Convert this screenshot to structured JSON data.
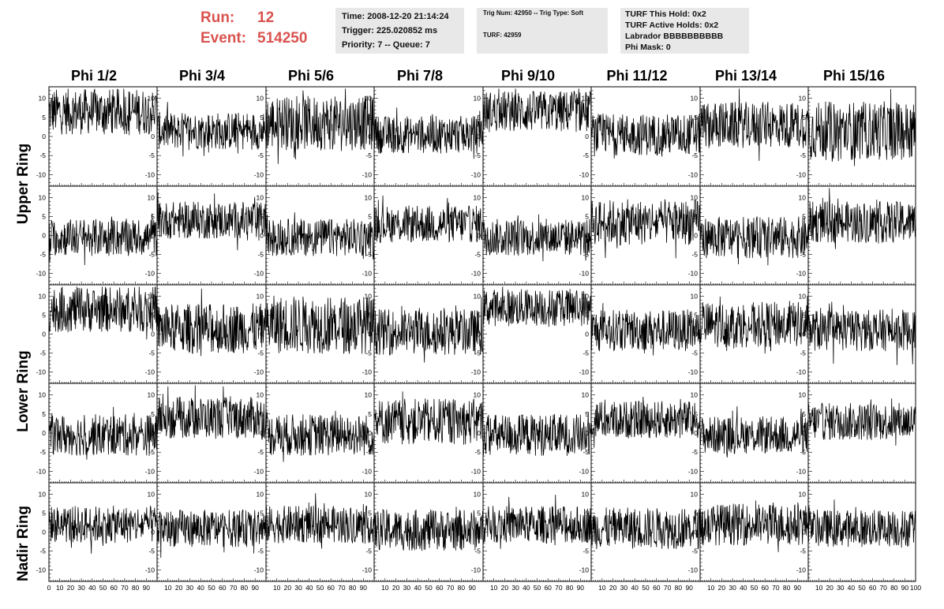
{
  "header": {
    "run_label": "Run:",
    "run_value": "12",
    "event_label": "Event:",
    "event_value": "514250"
  },
  "info_panel_1": {
    "time": "Time: 2008-12-20 21:14:24",
    "trigger": "Trigger: 225.020852 ms",
    "priority": "Priority: 7 -- Queue: 7"
  },
  "info_panel_2": {
    "trig": "Trig Num: 42950 -- Trig Type: Soft",
    "turf": "TURF: 42959"
  },
  "info_panel_3": {
    "this_hold": "TURF This Hold: 0x2",
    "active_holds": "TURF Active Holds: 0x2",
    "labrador": "Labrador BBBBBBBBBB",
    "phi_mask": "Phi Mask: 0"
  },
  "columns": [
    "Phi 1/2",
    "Phi 3/4",
    "Phi 5/6",
    "Phi 7/8",
    "Phi 9/10",
    "Phi 11/12",
    "Phi 13/14",
    "Phi 15/16"
  ],
  "rows": [
    "Upper Ring",
    "Upper Ring",
    "Lower Ring",
    "Lower Ring",
    "Nadir Ring"
  ],
  "chart_data": {
    "type": "line",
    "title": "",
    "xlim": [
      0,
      100
    ],
    "ylim": [
      -13,
      13
    ],
    "x_ticks": [
      0,
      10,
      20,
      30,
      40,
      50,
      60,
      70,
      80,
      90,
      100
    ],
    "y_ticks": [
      -10,
      -5,
      0,
      5,
      10
    ],
    "x_tick_labels_bottom": "0 10 20 30 40 50 60 70 80 90 100",
    "grid": false,
    "panels": [
      [
        {
          "baseline": 6.5,
          "spread": 5.5
        },
        {
          "baseline": 1.5,
          "spread": 4.5
        },
        {
          "baseline": 3.5,
          "spread": 6.5
        },
        {
          "baseline": 0.5,
          "spread": 4.5
        },
        {
          "baseline": 6.5,
          "spread": 5
        },
        {
          "baseline": 0.5,
          "spread": 5
        },
        {
          "baseline": 3,
          "spread": 5.5
        },
        {
          "baseline": 1.5,
          "spread": 7
        }
      ],
      [
        {
          "baseline": -0.5,
          "spread": 4.5
        },
        {
          "baseline": 4,
          "spread": 4.5
        },
        {
          "baseline": -0.5,
          "spread": 4.5
        },
        {
          "baseline": 3,
          "spread": 4.5
        },
        {
          "baseline": -0.5,
          "spread": 4.5
        },
        {
          "baseline": 3.5,
          "spread": 5.5
        },
        {
          "baseline": -0.5,
          "spread": 5
        },
        {
          "baseline": 3.5,
          "spread": 5
        }
      ],
      [
        {
          "baseline": 6.5,
          "spread": 5.5
        },
        {
          "baseline": 1.5,
          "spread": 6
        },
        {
          "baseline": 2.5,
          "spread": 7
        },
        {
          "baseline": 0.5,
          "spread": 5.5
        },
        {
          "baseline": 7,
          "spread": 4.5
        },
        {
          "baseline": 1,
          "spread": 5
        },
        {
          "baseline": 2.5,
          "spread": 5.5
        },
        {
          "baseline": 1,
          "spread": 5
        }
      ],
      [
        {
          "baseline": -0.5,
          "spread": 5
        },
        {
          "baseline": 4,
          "spread": 5
        },
        {
          "baseline": -0.5,
          "spread": 5
        },
        {
          "baseline": 3,
          "spread": 5.5
        },
        {
          "baseline": -0.5,
          "spread": 5
        },
        {
          "baseline": 3.5,
          "spread": 4.5
        },
        {
          "baseline": -0.5,
          "spread": 4.5
        },
        {
          "baseline": 3,
          "spread": 4.5
        }
      ],
      [
        {
          "baseline": 2,
          "spread": 4.5
        },
        {
          "baseline": 1,
          "spread": 4.5
        },
        {
          "baseline": 2,
          "spread": 4.5
        },
        {
          "baseline": 0.5,
          "spread": 5
        },
        {
          "baseline": 2,
          "spread": 4.5
        },
        {
          "baseline": 1,
          "spread": 5
        },
        {
          "baseline": 2,
          "spread": 5
        },
        {
          "baseline": 1,
          "spread": 4.5
        }
      ]
    ]
  }
}
